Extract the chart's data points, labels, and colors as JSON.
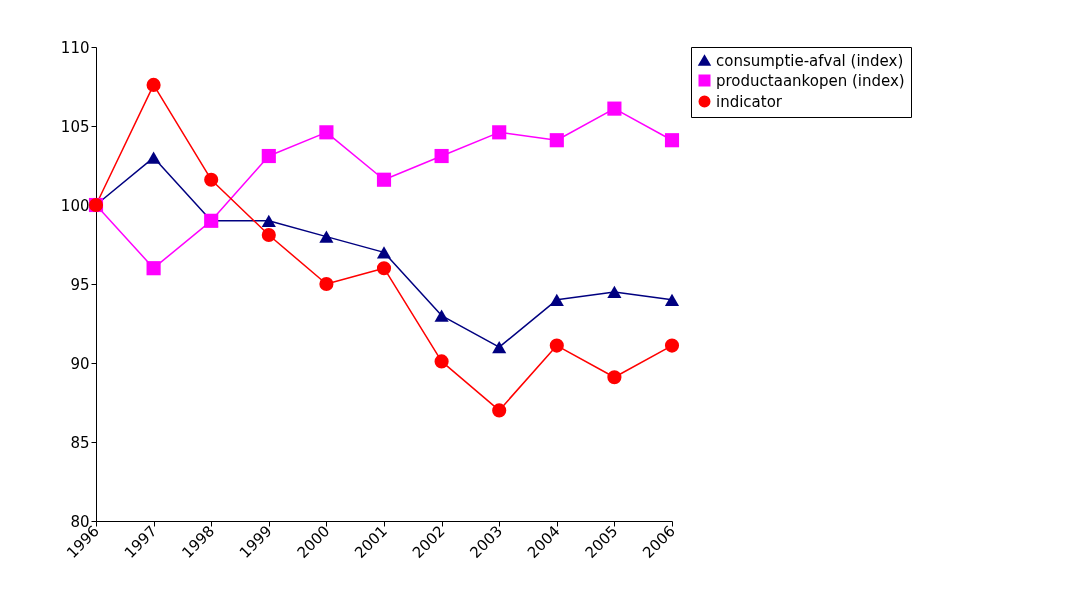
{
  "chart_data": {
    "type": "line",
    "categories": [
      "1996",
      "1997",
      "1998",
      "1999",
      "2000",
      "2001",
      "2002",
      "2003",
      "2004",
      "2005",
      "2006"
    ],
    "ylim": [
      80,
      110
    ],
    "yticks": [
      80,
      85,
      90,
      95,
      100,
      105,
      110
    ],
    "grid": false,
    "legend": "right",
    "line_style": "solid",
    "series": [
      {
        "name": "consumptie-afval (index)",
        "color": "#000080",
        "marker": "triangle",
        "values": [
          100,
          103,
          99,
          99,
          98,
          97,
          93,
          91,
          94,
          94.5,
          94
        ]
      },
      {
        "name": "productaankopen (index)",
        "color": "#ff00ff",
        "marker": "square",
        "values": [
          100,
          96,
          99,
          103.1,
          104.6,
          101.6,
          103.1,
          104.6,
          104.1,
          106.1,
          104.1
        ]
      },
      {
        "name": "indicator",
        "color": "#ff0000",
        "marker": "circle",
        "values": [
          100,
          107.6,
          101.6,
          98.1,
          95,
          96,
          90.1,
          87,
          91.1,
          89.1,
          91.1
        ]
      }
    ]
  }
}
